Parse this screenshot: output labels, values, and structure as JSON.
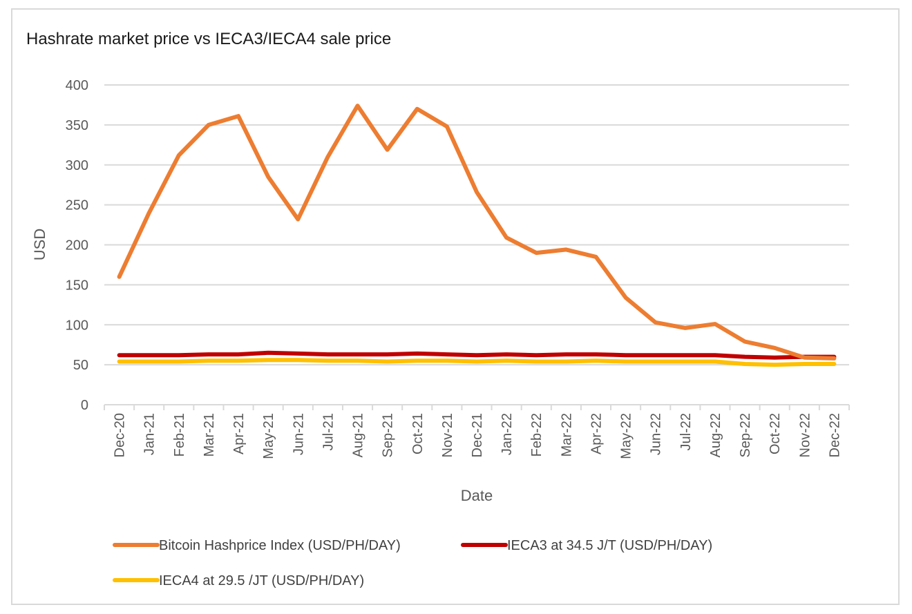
{
  "chart_data": {
    "type": "line",
    "title": "Hashrate market price vs IECA3/IECA4 sale price",
    "xlabel": "Date",
    "ylabel": "USD",
    "ylim": [
      0,
      400
    ],
    "yticks": [
      0,
      50,
      100,
      150,
      200,
      250,
      300,
      350,
      400
    ],
    "grid": true,
    "legend_position": "bottom",
    "categories": [
      "Dec-20",
      "Jan-21",
      "Feb-21",
      "Mar-21",
      "Apr-21",
      "May-21",
      "Jun-21",
      "Jul-21",
      "Aug-21",
      "Sep-21",
      "Oct-21",
      "Nov-21",
      "Dec-21",
      "Jan-22",
      "Feb-22",
      "Mar-22",
      "Apr-22",
      "May-22",
      "Jun-22",
      "Jul-22",
      "Aug-22",
      "Sep-22",
      "Oct-22",
      "Nov-22",
      "Dec-22"
    ],
    "series": [
      {
        "name": "Bitcoin Hashprice Index (USD/PH/DAY)",
        "color": "#ED7D31",
        "values": [
          160,
          240,
          312,
          350,
          361,
          285,
          232,
          310,
          374,
          319,
          370,
          348,
          266,
          209,
          190,
          194,
          185,
          134,
          103,
          96,
          101,
          79,
          71,
          59,
          58
        ]
      },
      {
        "name": "IECA3 at 34.5 J/T (USD/PH/DAY)",
        "color": "#C00000",
        "values": [
          62,
          62,
          62,
          63,
          63,
          65,
          64,
          63,
          63,
          63,
          64,
          63,
          62,
          63,
          62,
          63,
          63,
          62,
          62,
          62,
          62,
          60,
          59,
          60,
          60
        ]
      },
      {
        "name": "IECA4 at 29.5 /JT (USD/PH/DAY)",
        "color": "#FFC000",
        "values": [
          54,
          54,
          54,
          55,
          55,
          56,
          56,
          55,
          55,
          54,
          55,
          55,
          54,
          55,
          54,
          54,
          55,
          54,
          54,
          54,
          54,
          51,
          50,
          51,
          51
        ]
      }
    ]
  }
}
